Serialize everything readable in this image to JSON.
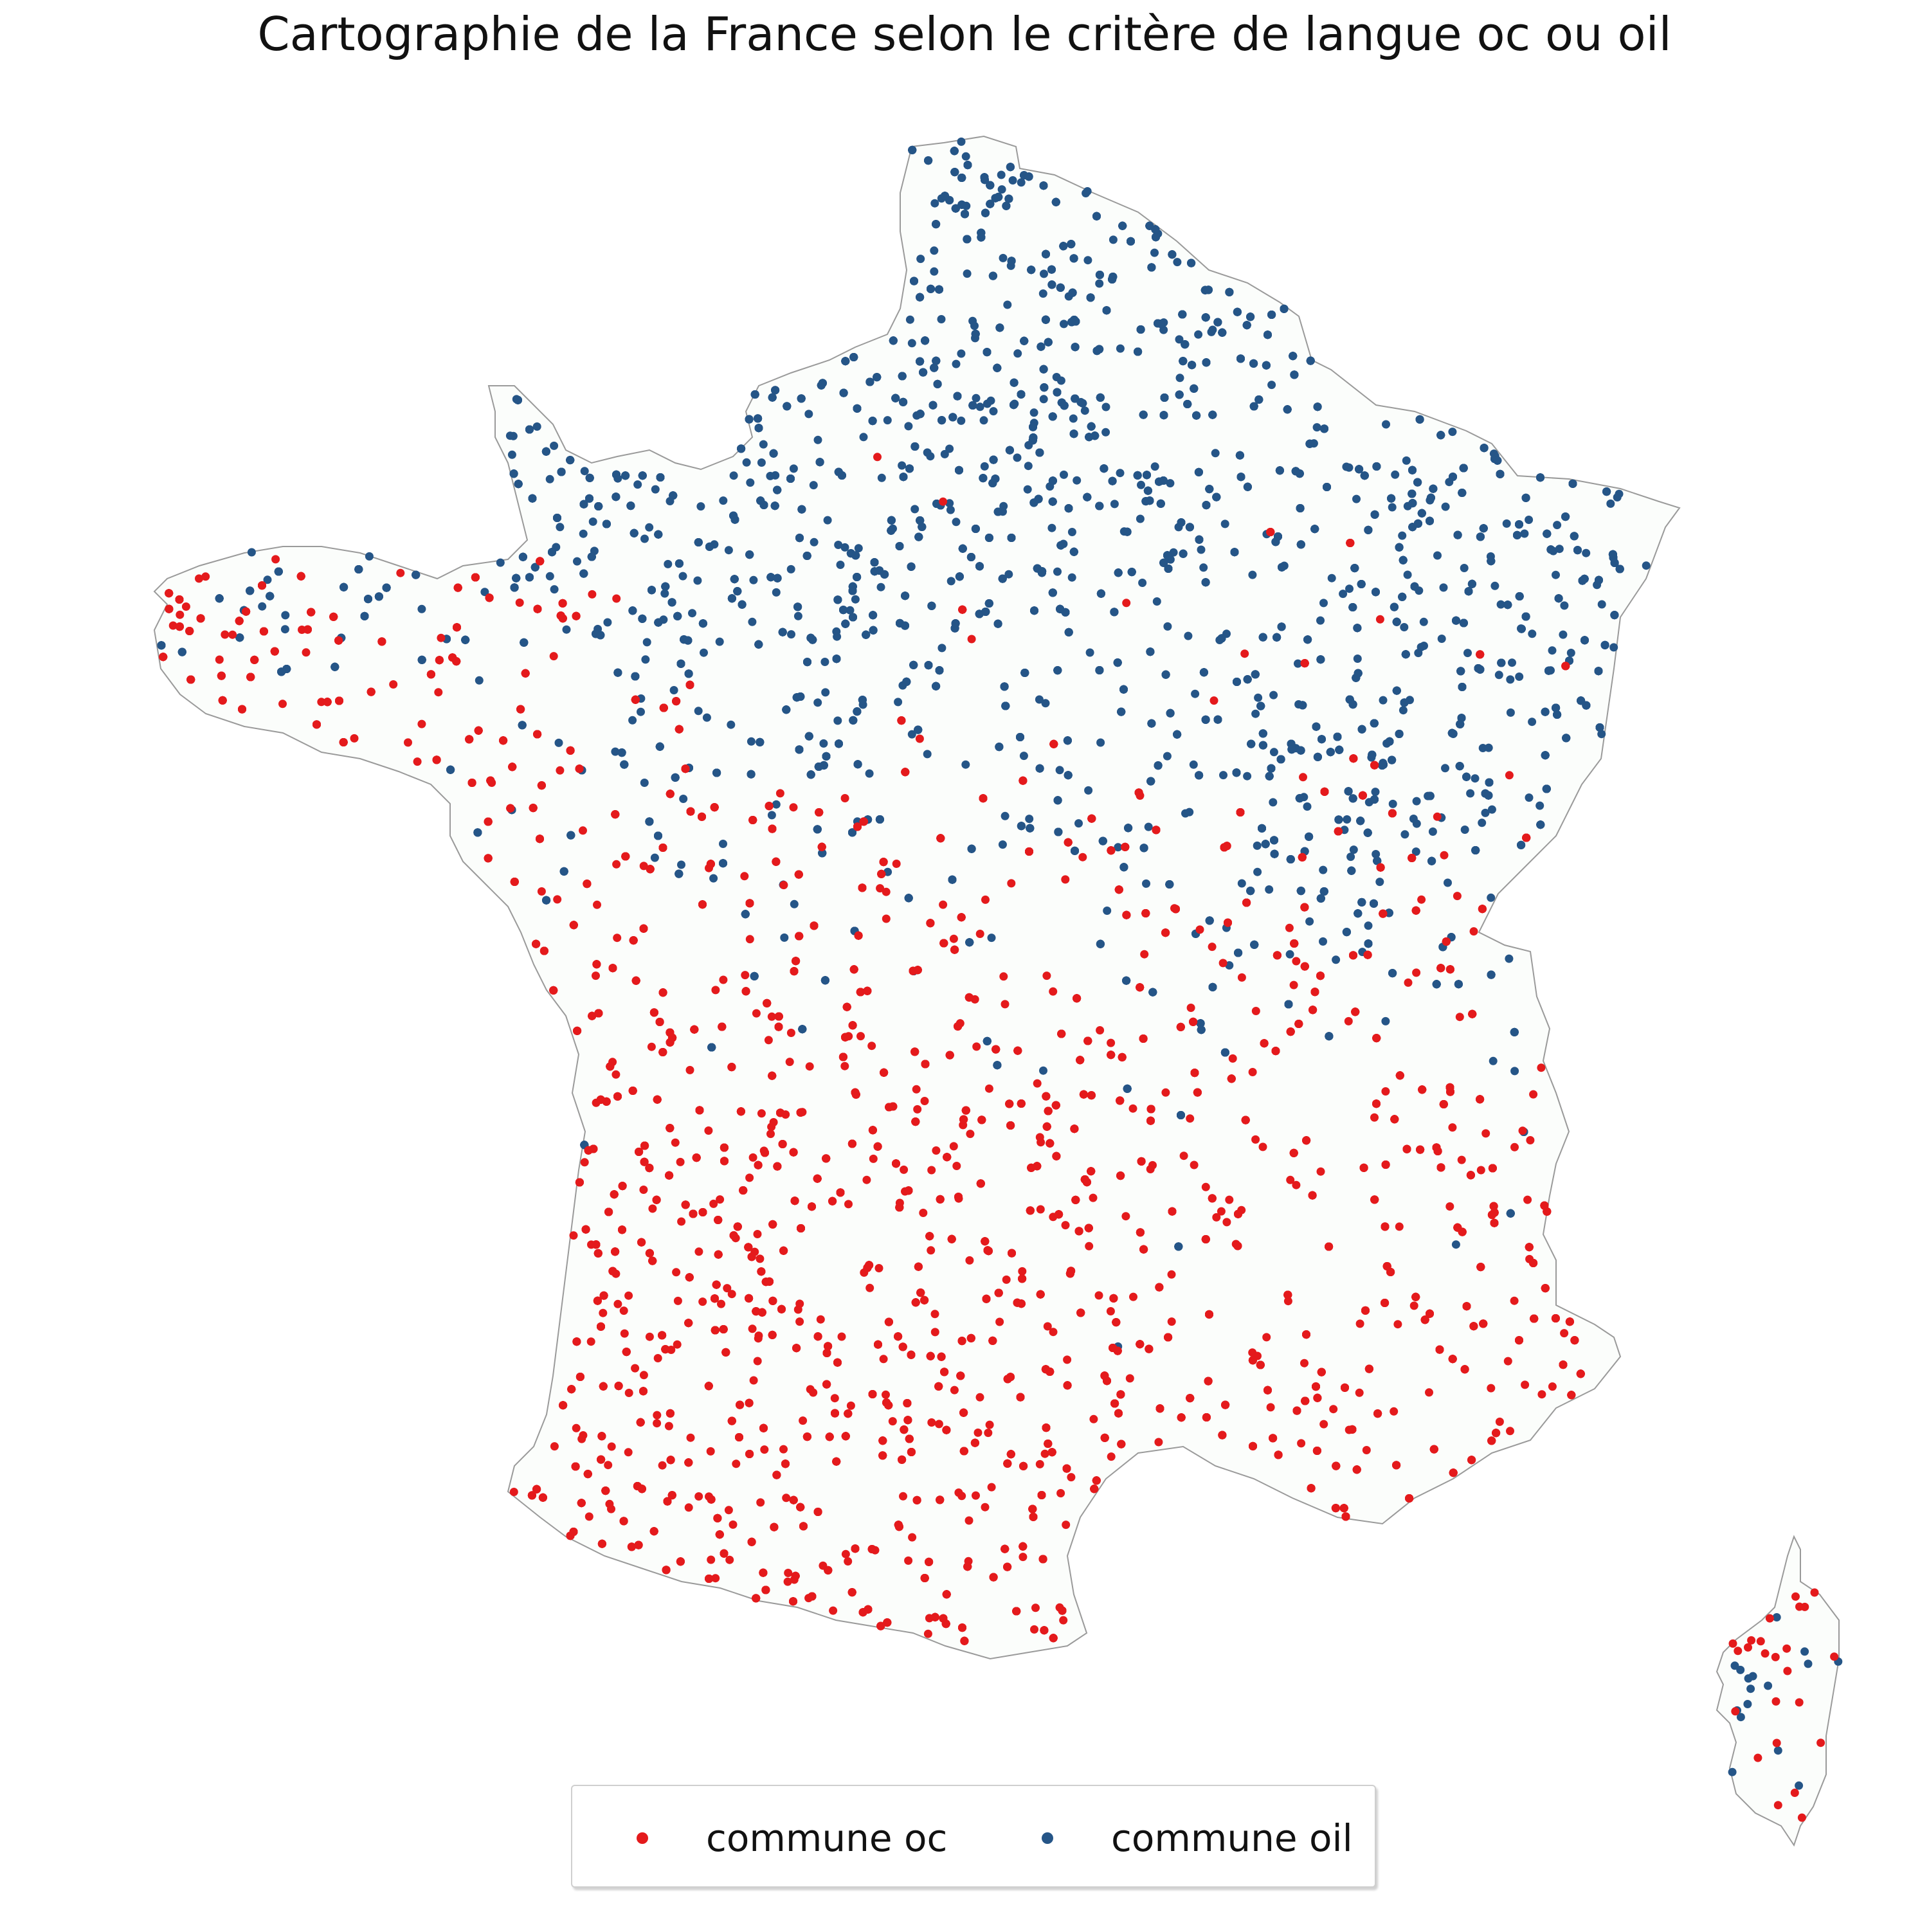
{
  "title": "Cartographie de la France selon le critère de langue oc ou oil",
  "colors": {
    "oc": "#e41a1c",
    "oil": "#255587",
    "land": "#fbfdfb",
    "border": "#9a9a9a"
  },
  "legend": {
    "placement": "bottom-center",
    "entries": [
      {
        "label": "commune oc",
        "color": "#e41a1c"
      },
      {
        "label": "commune oil",
        "color": "#255587"
      }
    ]
  },
  "map_features": {
    "type": "point-map",
    "regions": [
      "France métropolitaine",
      "Corse"
    ],
    "point_categories": [
      "commune oc",
      "commune oil"
    ],
    "distribution": "oil communes dominate the north and east; oc communes dominate the south-west and south; mixed across the centre"
  }
}
